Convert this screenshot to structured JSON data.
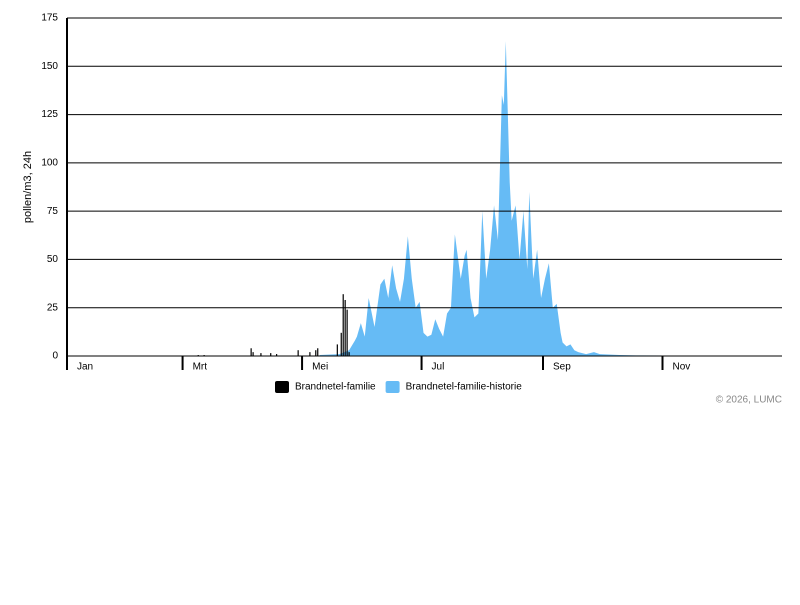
{
  "chart_data": {
    "type": "area",
    "y_label": "pollen/m3, 24h",
    "xlim": [
      0,
      365
    ],
    "xticks": [
      {
        "value": 0,
        "label": "Jan"
      },
      {
        "value": 59,
        "label": "Mrt"
      },
      {
        "value": 120,
        "label": "Mei"
      },
      {
        "value": 181,
        "label": "Jul"
      },
      {
        "value": 243,
        "label": "Sep"
      },
      {
        "value": 304,
        "label": "Nov"
      }
    ],
    "ylim": [
      0,
      175
    ],
    "yticks": [
      0,
      25,
      50,
      75,
      100,
      125,
      150,
      175
    ],
    "grid": true,
    "legend": "bottom",
    "credit": "© 2026, LUMC",
    "series": [
      {
        "name": "Brandnetel-familie",
        "type": "bar",
        "color": "#000000",
        "x": [
          67,
          70,
          94,
          95,
          99,
          104,
          107,
          118,
          124,
          127,
          128,
          138,
          140,
          141,
          142,
          143,
          144
        ],
        "values": [
          0.5,
          0.5,
          4,
          2,
          1.5,
          1.5,
          1,
          3,
          2,
          3,
          4,
          6,
          12,
          32,
          29,
          24,
          2
        ]
      },
      {
        "name": "Brandnetel-familie-historie",
        "type": "area",
        "color": "#66bbf5",
        "x": [
          129,
          139,
          144,
          147,
          148,
          150,
          152,
          154,
          157,
          160,
          162,
          164,
          166,
          168,
          170,
          172,
          174,
          176,
          178,
          180,
          182,
          184,
          186,
          188,
          190,
          192,
          194,
          196,
          198,
          201,
          203,
          204,
          206,
          208,
          210,
          212,
          214,
          216,
          218,
          220,
          222,
          223,
          224,
          226,
          227,
          229,
          231,
          233,
          235,
          236,
          238,
          240,
          242,
          244,
          246,
          248,
          250,
          252,
          253,
          255,
          257,
          259,
          261,
          265,
          269,
          272,
          282,
          292,
          318,
          320
        ],
        "values": [
          0.5,
          1,
          3,
          8,
          10,
          17,
          10,
          30,
          15,
          37,
          40,
          30,
          47,
          35,
          28,
          40,
          62,
          40,
          25,
          28,
          12,
          10,
          11,
          19,
          14,
          10,
          22,
          25,
          63,
          40,
          52,
          55,
          30,
          20,
          22,
          75,
          40,
          55,
          78,
          60,
          135,
          130,
          163,
          90,
          70,
          78,
          50,
          75,
          45,
          85,
          40,
          55,
          30,
          40,
          48,
          25,
          27,
          12,
          7,
          5,
          6,
          3,
          2,
          1,
          2,
          1,
          0.5,
          0.3,
          0.2,
          0
        ]
      }
    ]
  }
}
